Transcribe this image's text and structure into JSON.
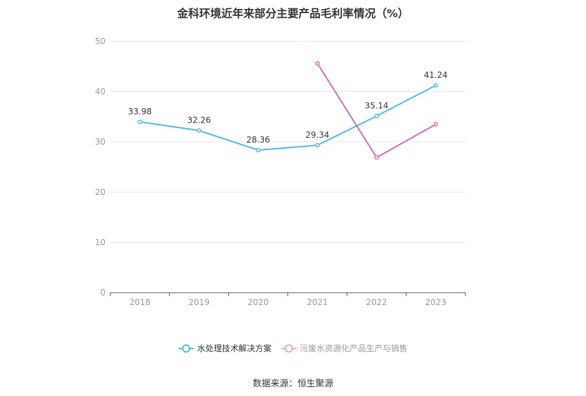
{
  "chart_data": {
    "type": "line",
    "title": "金科环境近年来部分主要产品毛利率情况（%）",
    "categories": [
      "2018",
      "2019",
      "2020",
      "2021",
      "2022",
      "2023"
    ],
    "ylim": [
      0,
      50
    ],
    "yticks": [
      "0",
      "10",
      "20",
      "30",
      "40",
      "50"
    ],
    "grid": true,
    "legend_position": "bottom",
    "series": [
      {
        "name": "水处理技术解决方案",
        "color": "#4fb8e8",
        "values": [
          33.98,
          32.26,
          28.36,
          29.34,
          35.14,
          41.24
        ],
        "labels": [
          "33.98",
          "32.26",
          "28.36",
          "29.34",
          "35.14",
          "41.24"
        ],
        "show_labels": true
      },
      {
        "name": "污废水资源化产品生产与销售",
        "color": "#d36ab4",
        "values": [
          null,
          null,
          null,
          45.6,
          26.9,
          33.5
        ],
        "show_labels": false
      }
    ]
  },
  "source": "数据来源：恒生聚源"
}
